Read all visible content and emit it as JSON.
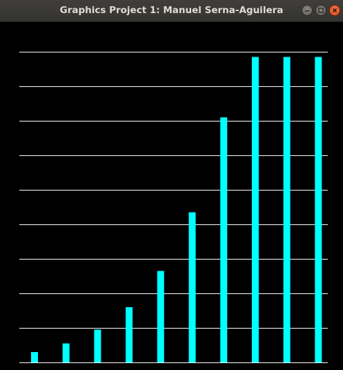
{
  "window": {
    "title": "Graphics Project 1: Manuel Serna-Aguilera",
    "controls": [
      {
        "name": "minimize",
        "icon": "minimize-icon"
      },
      {
        "name": "maximize",
        "icon": "maximize-icon"
      },
      {
        "name": "close",
        "icon": "close-icon"
      }
    ]
  },
  "colors": {
    "bar": "#00ffff",
    "grid": "#ffffff",
    "background": "#000000"
  },
  "chart_data": {
    "type": "bar",
    "title": "",
    "xlabel": "",
    "ylabel": "",
    "grid": true,
    "ylim": [
      0,
      10
    ],
    "values": [
      0.3,
      0.55,
      0.95,
      1.6,
      2.65,
      4.35,
      7.1,
      8.85,
      8.85,
      8.85
    ]
  }
}
